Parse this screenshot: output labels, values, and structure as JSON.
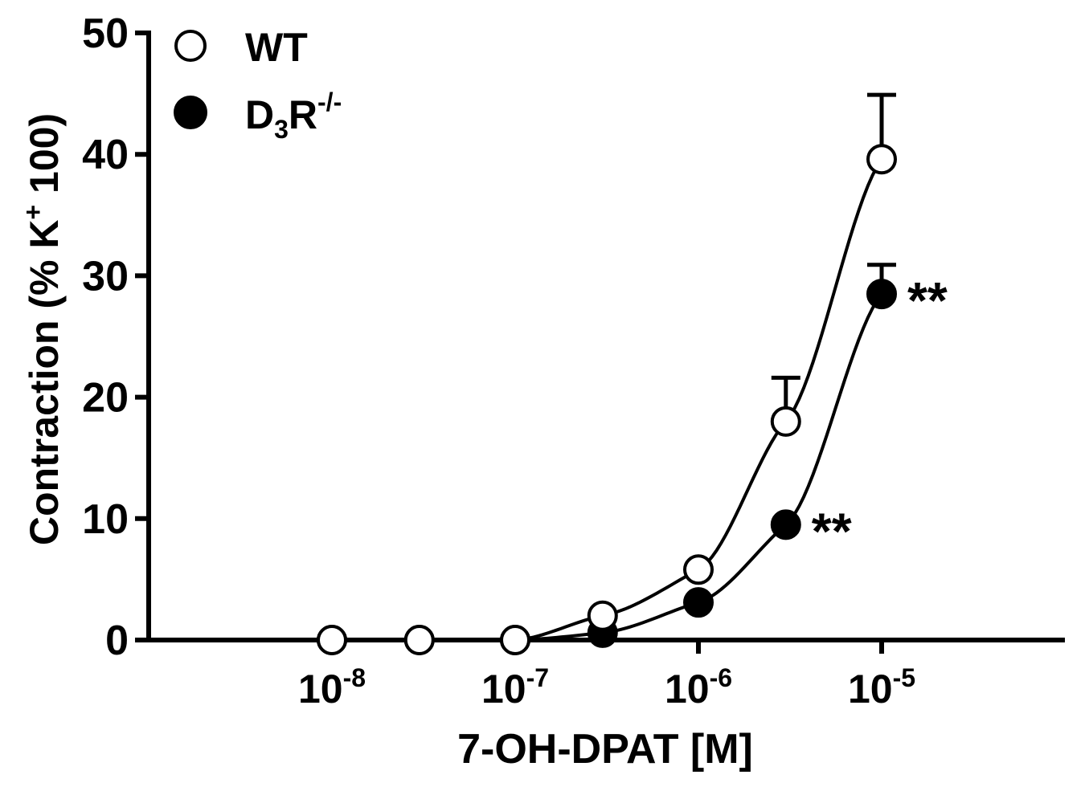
{
  "chart_data": {
    "type": "scatter",
    "xlabel": "7-OH-DPAT [M]",
    "ylabel": {
      "prefix": "Contraction (% K",
      "sup": "+",
      "suffix": " 100)"
    },
    "x_scale": "log",
    "x_ticks": [
      {
        "value": 1e-08,
        "base": "10",
        "exp": "-8"
      },
      {
        "value": 1e-07,
        "base": "10",
        "exp": "-7"
      },
      {
        "value": 1e-06,
        "base": "10",
        "exp": "-6"
      },
      {
        "value": 1e-05,
        "base": "10",
        "exp": "-5"
      }
    ],
    "xlim": [
      1e-09,
      0.0001
    ],
    "ylim": [
      0,
      50
    ],
    "y_ticks": [
      0,
      10,
      20,
      30,
      40,
      50
    ],
    "grid": false,
    "legend_position": "top-left",
    "series": [
      {
        "name": "WT",
        "marker": "open-circle",
        "color": "#000000",
        "points": [
          {
            "x": 1e-08,
            "y": 0
          },
          {
            "x": 3e-08,
            "y": 0
          },
          {
            "x": 1e-07,
            "y": 0
          },
          {
            "x": 3e-07,
            "y": 2
          },
          {
            "x": 1e-06,
            "y": 5.8
          },
          {
            "x": 3e-06,
            "y": 18,
            "err": 3.6
          },
          {
            "x": 1e-05,
            "y": 39.6,
            "err": 5.3
          }
        ]
      },
      {
        "name": "D3R-/-",
        "legend_label": {
          "base": "D",
          "sub": "3",
          "mid": "R",
          "sup": "-/-"
        },
        "marker": "filled-circle",
        "color": "#000000",
        "points": [
          {
            "x": 1e-08,
            "y": 0
          },
          {
            "x": 3e-08,
            "y": 0
          },
          {
            "x": 1e-07,
            "y": 0
          },
          {
            "x": 3e-07,
            "y": 0.6
          },
          {
            "x": 1e-06,
            "y": 3.1
          },
          {
            "x": 3e-06,
            "y": 9.5
          },
          {
            "x": 1e-05,
            "y": 28.5,
            "err": 2.4
          }
        ]
      }
    ],
    "annotations": [
      {
        "text": "**",
        "x": 1e-05,
        "y": 28.5
      },
      {
        "text": "**",
        "x": 3e-06,
        "y": 9.5
      }
    ]
  }
}
